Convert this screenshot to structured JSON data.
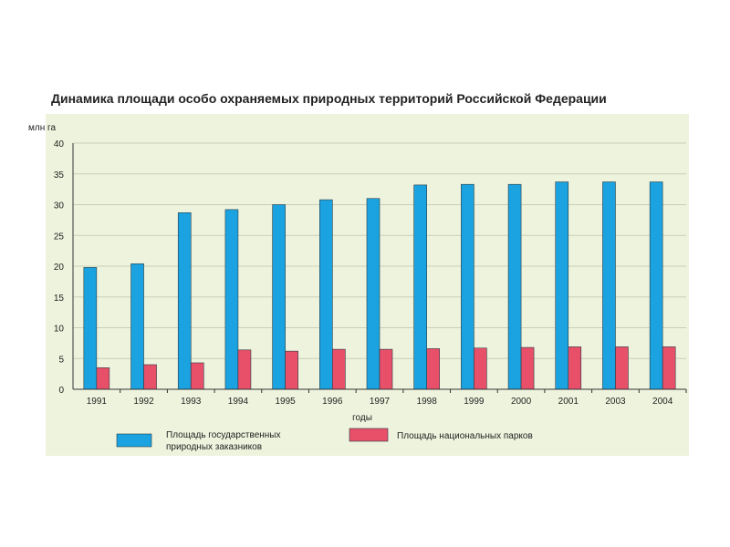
{
  "chart_data": {
    "type": "bar",
    "title": "Динамика площади особо охраняемых природных территорий Российской Федерации",
    "ylabel": "млн га",
    "xlabel": "годы",
    "ylim": [
      0,
      40
    ],
    "yticks": [
      0,
      5,
      10,
      15,
      20,
      25,
      30,
      35,
      40
    ],
    "categories": [
      "1991",
      "1992",
      "1993",
      "1994",
      "1995",
      "1996",
      "1997",
      "1998",
      "1999",
      "2000",
      "2001",
      "2003",
      "2004"
    ],
    "series": [
      {
        "name_lines": [
          "Площадь государственных",
          "природных заказников"
        ],
        "color": "#1aa3e0",
        "values": [
          19.8,
          20.4,
          28.7,
          29.2,
          30.0,
          30.8,
          31.0,
          33.2,
          33.3,
          33.3,
          33.7,
          33.7,
          33.7
        ]
      },
      {
        "name_lines": [
          "Площадь национальных парков"
        ],
        "color": "#e8506a",
        "values": [
          3.5,
          4.0,
          4.3,
          6.4,
          6.2,
          6.5,
          6.5,
          6.6,
          6.7,
          6.8,
          6.9,
          6.9,
          6.9
        ]
      }
    ],
    "grid": true,
    "legend": "bottom",
    "plot_background": "#eef3dd"
  }
}
